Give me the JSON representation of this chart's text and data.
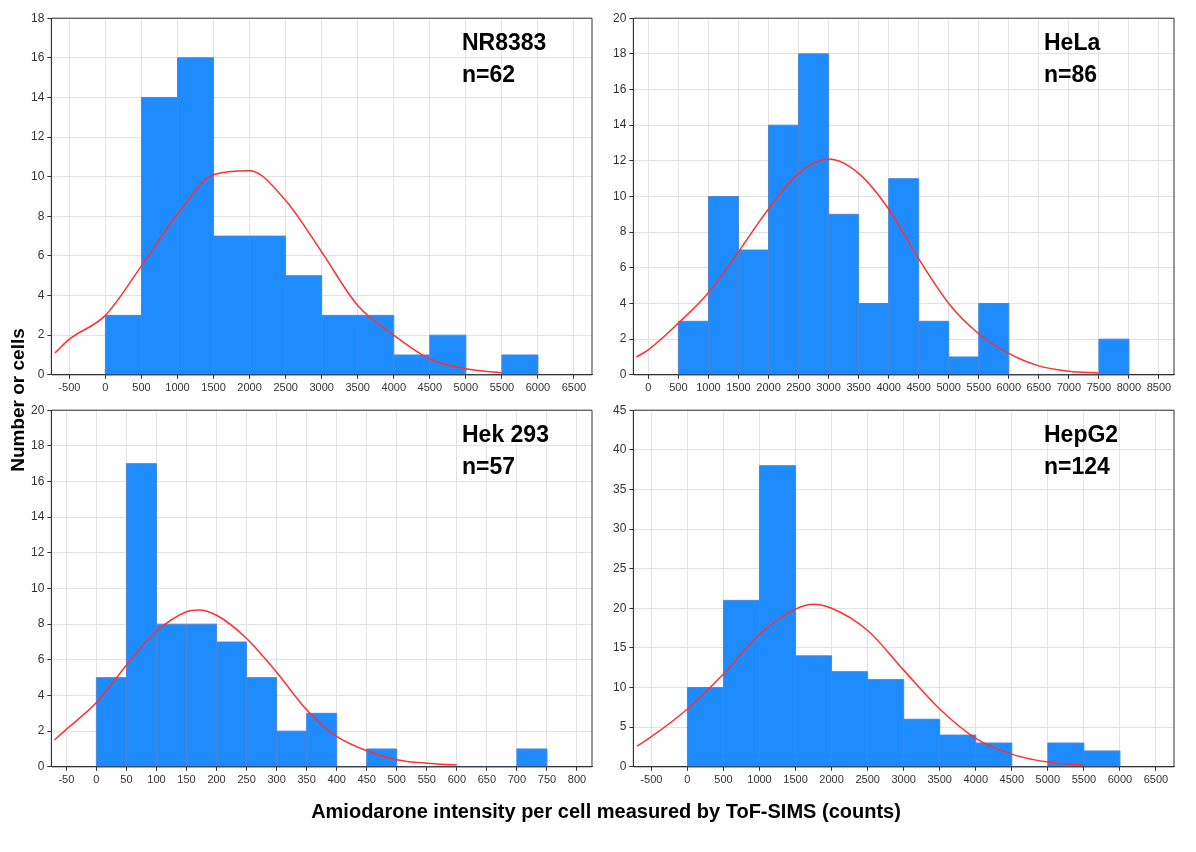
{
  "chart_data": [
    {
      "type": "histogram",
      "bins": [
        0,
        500,
        1000,
        1500,
        2000,
        2500,
        3000,
        3500,
        4000,
        4500,
        5000,
        5500,
        6000
      ],
      "values": [
        3,
        14,
        16,
        7,
        7,
        5,
        3,
        3,
        1,
        2,
        0,
        1
      ],
      "color": "#1e8cff",
      "xlim": [
        -750,
        6750
      ],
      "xticks": [
        -500,
        0,
        500,
        1000,
        1500,
        2000,
        2500,
        3000,
        3500,
        4000,
        4500,
        5000,
        5500,
        6000,
        6500
      ],
      "ylim": [
        0,
        18
      ],
      "yticks": [
        0,
        2,
        4,
        6,
        8,
        10,
        12,
        14,
        16,
        18
      ],
      "grid": true,
      "legend": false,
      "marker": "none",
      "annotations": [
        "NR8383",
        "n=62"
      ],
      "ylabel": "Number or cells",
      "series": [
        {
          "type": "line",
          "color": "#ff3030",
          "x": [
            -700,
            -500,
            0,
            500,
            1000,
            1500,
            2000,
            2500,
            3000,
            3500,
            4000,
            4500,
            5000,
            5500
          ],
          "values": [
            1.1,
            1.8,
            3.0,
            5.5,
            8.1,
            10.1,
            10.3,
            8.8,
            6.2,
            3.5,
            2.0,
            0.8,
            0.3,
            0.1
          ]
        }
      ]
    },
    {
      "type": "histogram",
      "bins": [
        500,
        1000,
        1500,
        2000,
        2500,
        3000,
        3500,
        4000,
        4500,
        5000,
        5500,
        6000,
        6500,
        7000,
        7500,
        8000
      ],
      "values": [
        3,
        10,
        7,
        14,
        18,
        9,
        4,
        11,
        3,
        1,
        4,
        0,
        0,
        0,
        2
      ],
      "color": "#1e8cff",
      "xlim": [
        -250,
        8750
      ],
      "xticks": [
        0,
        500,
        1000,
        1500,
        2000,
        2500,
        3000,
        3500,
        4000,
        4500,
        5000,
        5500,
        6000,
        6500,
        7000,
        7500,
        8000,
        8500
      ],
      "ylim": [
        0,
        20
      ],
      "yticks": [
        0,
        2,
        4,
        6,
        8,
        10,
        12,
        14,
        16,
        18,
        20
      ],
      "grid": true,
      "legend": false,
      "marker": "none",
      "annotations": [
        "HeLa",
        "n=86"
      ],
      "series": [
        {
          "type": "line",
          "color": "#ff3030",
          "x": [
            -200,
            0,
            500,
            1000,
            1500,
            2000,
            2500,
            3000,
            3500,
            4000,
            4500,
            5000,
            5500,
            6000,
            6500,
            7000,
            7500
          ],
          "values": [
            1.0,
            1.4,
            2.9,
            4.6,
            6.9,
            9.3,
            11.3,
            12.1,
            11.3,
            9.3,
            6.5,
            4.0,
            2.3,
            1.2,
            0.5,
            0.2,
            0.1
          ]
        }
      ]
    },
    {
      "type": "histogram",
      "bins": [
        0,
        50,
        100,
        150,
        200,
        250,
        300,
        350,
        400,
        450,
        500,
        550,
        600,
        650,
        700,
        750
      ],
      "values": [
        5,
        17,
        8,
        8,
        7,
        5,
        2,
        3,
        0,
        1,
        0,
        0,
        0,
        0,
        1
      ],
      "color": "#1e8cff",
      "xlim": [
        -75,
        825
      ],
      "xticks": [
        -50,
        0,
        50,
        100,
        150,
        200,
        250,
        300,
        350,
        400,
        450,
        500,
        550,
        600,
        650,
        700,
        750,
        800
      ],
      "ylim": [
        0,
        20
      ],
      "yticks": [
        0,
        2,
        4,
        6,
        8,
        10,
        12,
        14,
        16,
        18,
        20
      ],
      "grid": true,
      "legend": false,
      "marker": "none",
      "annotations": [
        "Hek 293",
        "n=57"
      ],
      "xlabel": "Amiodarone intensity per cell measured by ToF-SIMS (counts)",
      "series": [
        {
          "type": "line",
          "color": "#ff3030",
          "x": [
            -70,
            -50,
            0,
            50,
            100,
            150,
            170,
            200,
            250,
            300,
            350,
            400,
            450,
            500,
            550,
            600
          ],
          "values": [
            1.5,
            2.1,
            3.6,
            5.7,
            7.6,
            8.7,
            8.8,
            8.5,
            7.2,
            5.3,
            3.2,
            1.7,
            0.9,
            0.4,
            0.2,
            0.1
          ]
        }
      ]
    },
    {
      "type": "histogram",
      "bins": [
        0,
        500,
        1000,
        1500,
        2000,
        2500,
        3000,
        3500,
        4000,
        4500,
        5000,
        5500,
        6000
      ],
      "values": [
        10,
        21,
        38,
        14,
        12,
        11,
        6,
        4,
        3,
        0,
        3,
        2
      ],
      "color": "#1e8cff",
      "xlim": [
        -750,
        6750
      ],
      "xticks": [
        -500,
        0,
        500,
        1000,
        1500,
        2000,
        2500,
        3000,
        3500,
        4000,
        4500,
        5000,
        5500,
        6000,
        6500
      ],
      "ylim": [
        0,
        45
      ],
      "yticks": [
        0,
        5,
        10,
        15,
        20,
        25,
        30,
        35,
        40,
        45
      ],
      "grid": true,
      "legend": false,
      "marker": "none",
      "annotations": [
        "HepG2",
        "n=124"
      ],
      "series": [
        {
          "type": "line",
          "color": "#ff3030",
          "x": [
            -700,
            -500,
            0,
            500,
            1000,
            1500,
            1750,
            2000,
            2500,
            3000,
            3500,
            4000,
            4500,
            5000,
            5500
          ],
          "values": [
            2.6,
            3.8,
            7.3,
            11.7,
            16.7,
            19.9,
            20.5,
            20.0,
            17.2,
            12.2,
            7.3,
            3.6,
            1.6,
            0.6,
            0.2
          ]
        }
      ]
    }
  ]
}
